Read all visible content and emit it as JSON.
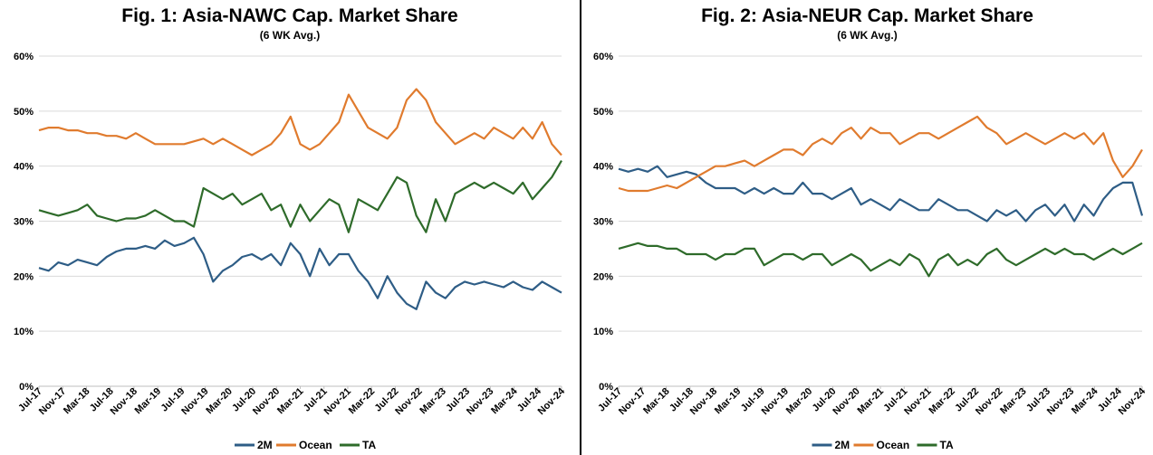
{
  "chart_data": [
    {
      "type": "line",
      "title": "Fig. 1: Asia-NAWC Cap. Market Share",
      "subtitle": "(6 WK Avg.)",
      "ylim": [
        0,
        60
      ],
      "yticks": [
        "0%",
        "10%",
        "20%",
        "30%",
        "40%",
        "50%",
        "60%"
      ],
      "grid": "horizontal",
      "legend": "bottom",
      "x_tick_labels": [
        "Jul-17",
        "Nov-17",
        "Mar-18",
        "Jul-18",
        "Nov-18",
        "Mar-19",
        "Jul-19",
        "Nov-19",
        "Mar-20",
        "Jul-20",
        "Nov-20",
        "Mar-21",
        "Jul-21",
        "Nov-21",
        "Mar-22",
        "Jul-22",
        "Nov-22",
        "Mar-23",
        "Jul-23",
        "Nov-23",
        "Mar-24",
        "Jul-24",
        "Nov-24"
      ],
      "series": [
        {
          "name": "2M",
          "color": "#2E5D86",
          "values": [
            21.5,
            21,
            22.5,
            22,
            23,
            22.5,
            22,
            23.5,
            24.5,
            25,
            25,
            25.5,
            25,
            26.5,
            25.5,
            26,
            27,
            24,
            19,
            21,
            22,
            23.5,
            24,
            23,
            24,
            22,
            26,
            24,
            20,
            25,
            22,
            24,
            24,
            21,
            19,
            16,
            20,
            17,
            15,
            14,
            19,
            17,
            16,
            18,
            19,
            18.5,
            19,
            18.5,
            18,
            19,
            18,
            17.5,
            19,
            18,
            17
          ]
        },
        {
          "name": "Ocean",
          "color": "#E07B2E",
          "values": [
            46.5,
            47,
            47,
            46.5,
            46.5,
            46,
            46,
            45.5,
            45.5,
            45,
            46,
            45,
            44,
            44,
            44,
            44,
            44.5,
            45,
            44,
            45,
            44,
            43,
            42,
            43,
            44,
            46,
            49,
            44,
            43,
            44,
            46,
            48,
            53,
            50,
            47,
            46,
            45,
            47,
            52,
            54,
            52,
            48,
            46,
            44,
            45,
            46,
            45,
            47,
            46,
            45,
            47,
            45,
            48,
            44,
            42
          ]
        },
        {
          "name": "TA",
          "color": "#2E6B2A",
          "values": [
            32,
            31.5,
            31,
            31.5,
            32,
            33,
            31,
            30.5,
            30,
            30.5,
            30.5,
            31,
            32,
            31,
            30,
            30,
            29,
            36,
            35,
            34,
            35,
            33,
            34,
            35,
            32,
            33,
            29,
            33,
            30,
            32,
            34,
            33,
            28,
            34,
            33,
            32,
            35,
            38,
            37,
            31,
            28,
            34,
            30,
            35,
            36,
            37,
            36,
            37,
            36,
            35,
            37,
            34,
            36,
            38,
            41
          ]
        }
      ]
    },
    {
      "type": "line",
      "title": "Fig. 2: Asia-NEUR Cap. Market Share",
      "subtitle": "(6 WK Avg.)",
      "ylim": [
        0,
        60
      ],
      "yticks": [
        "0%",
        "10%",
        "20%",
        "30%",
        "40%",
        "50%",
        "60%"
      ],
      "grid": "horizontal",
      "legend": "bottom",
      "x_tick_labels": [
        "Jul-17",
        "Nov-17",
        "Mar-18",
        "Jul-18",
        "Nov-18",
        "Mar-19",
        "Jul-19",
        "Nov-19",
        "Mar-20",
        "Jul-20",
        "Nov-20",
        "Mar-21",
        "Jul-21",
        "Nov-21",
        "Mar-22",
        "Jul-22",
        "Nov-22",
        "Mar-23",
        "Jul-23",
        "Nov-23",
        "Mar-24",
        "Jul-24",
        "Nov-24"
      ],
      "series": [
        {
          "name": "2M",
          "color": "#2E5D86",
          "values": [
            39.5,
            39,
            39.5,
            39,
            40,
            38,
            38.5,
            39,
            38.5,
            37,
            36,
            36,
            36,
            35,
            36,
            35,
            36,
            35,
            35,
            37,
            35,
            35,
            34,
            35,
            36,
            33,
            34,
            33,
            32,
            34,
            33,
            32,
            32,
            34,
            33,
            32,
            32,
            31,
            30,
            32,
            31,
            32,
            30,
            32,
            33,
            31,
            33,
            30,
            33,
            31,
            34,
            36,
            37,
            37,
            31
          ]
        },
        {
          "name": "Ocean",
          "color": "#E07B2E",
          "values": [
            36,
            35.5,
            35.5,
            35.5,
            36,
            36.5,
            36,
            37,
            38,
            39,
            40,
            40,
            40.5,
            41,
            40,
            41,
            42,
            43,
            43,
            42,
            44,
            45,
            44,
            46,
            47,
            45,
            47,
            46,
            46,
            44,
            45,
            46,
            46,
            45,
            46,
            47,
            48,
            49,
            47,
            46,
            44,
            45,
            46,
            45,
            44,
            45,
            46,
            45,
            46,
            44,
            46,
            41,
            38,
            40,
            43
          ]
        },
        {
          "name": "TA",
          "color": "#2E6B2A",
          "values": [
            25,
            25.5,
            26,
            25.5,
            25.5,
            25,
            25,
            24,
            24,
            24,
            23,
            24,
            24,
            25,
            25,
            22,
            23,
            24,
            24,
            23,
            24,
            24,
            22,
            23,
            24,
            23,
            21,
            22,
            23,
            22,
            24,
            23,
            20,
            23,
            24,
            22,
            23,
            22,
            24,
            25,
            23,
            22,
            23,
            24,
            25,
            24,
            25,
            24,
            24,
            23,
            24,
            25,
            24,
            25,
            26
          ]
        }
      ]
    }
  ]
}
